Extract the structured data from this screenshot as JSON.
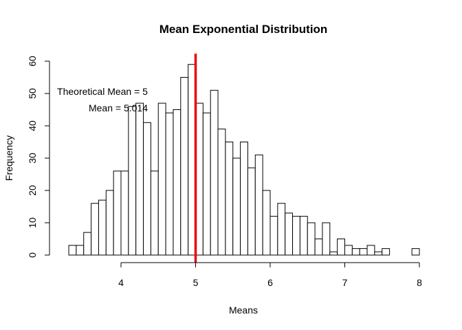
{
  "chart_data": {
    "type": "bar",
    "title": "Mean Exponential Distribution",
    "xlabel": "Means",
    "ylabel": "Frequency",
    "xlim": [
      3.2,
      8.0
    ],
    "ylim": [
      0,
      62
    ],
    "x_ticks": [
      "4",
      "5",
      "6",
      "7",
      "8"
    ],
    "x_tick_values": [
      4,
      5,
      6,
      7,
      8
    ],
    "y_ticks": [
      "0",
      "10",
      "20",
      "30",
      "40",
      "50",
      "60"
    ],
    "y_tick_values": [
      0,
      10,
      20,
      30,
      40,
      50,
      60
    ],
    "bin_width": 0.1,
    "bin_start": 3.3,
    "bin_counts": [
      3,
      3,
      7,
      16,
      17,
      20,
      26,
      26,
      46,
      47,
      41,
      26,
      47,
      44,
      45,
      55,
      59,
      47,
      44,
      51,
      39,
      35,
      30,
      35,
      27,
      31,
      20,
      12,
      16,
      13,
      12,
      12,
      10,
      5,
      10,
      1,
      5,
      3,
      2,
      2,
      3,
      1,
      2,
      0,
      0,
      0,
      2
    ],
    "grid": false,
    "vlines": [
      {
        "label": "Theoretical Mean = 5",
        "x": 5,
        "color": "#ee0000"
      },
      {
        "label": "Mean = 5.014",
        "x": 5.014,
        "color": "#0000ee"
      }
    ]
  },
  "colors": {
    "theoretical": "#ee0000",
    "sample": "#0000ee",
    "bar_fill": "#ffffff",
    "bar_stroke": "#000000"
  }
}
